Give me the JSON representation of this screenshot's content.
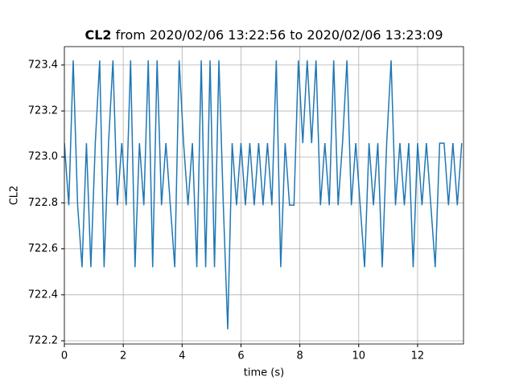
{
  "chart_data": {
    "type": "line",
    "title": [
      "CL2",
      "from 2020/02/06 13:22:56 to 2020/02/06 13:23:09"
    ],
    "xlabel": "time (s)",
    "ylabel": "CL2",
    "x": [
      0,
      0.15,
      0.3,
      0.45,
      0.6,
      0.75,
      0.9,
      1.05,
      1.2,
      1.35,
      1.5,
      1.65,
      1.8,
      1.95,
      2.1,
      2.25,
      2.4,
      2.55,
      2.7,
      2.85,
      3.0,
      3.15,
      3.3,
      3.45,
      3.6,
      3.75,
      3.9,
      4.05,
      4.2,
      4.35,
      4.5,
      4.65,
      4.8,
      4.95,
      5.1,
      5.25,
      5.4,
      5.55,
      5.7,
      5.85,
      6.0,
      6.15,
      6.3,
      6.45,
      6.6,
      6.75,
      6.9,
      7.05,
      7.2,
      7.35,
      7.5,
      7.65,
      7.8,
      7.95,
      8.1,
      8.25,
      8.4,
      8.55,
      8.7,
      8.85,
      9.0,
      9.15,
      9.3,
      9.45,
      9.6,
      9.75,
      9.9,
      10.05,
      10.2,
      10.35,
      10.5,
      10.65,
      10.8,
      10.95,
      11.1,
      11.25,
      11.4,
      11.55,
      11.7,
      11.85,
      12.0,
      12.15,
      12.3,
      12.45,
      12.6,
      12.75,
      12.9,
      13.05,
      13.2,
      13.35,
      13.5
    ],
    "series": [
      {
        "name": "CL2",
        "color": "#1f77b4",
        "values": [
          723.06,
          722.79,
          723.42,
          722.79,
          722.52,
          723.06,
          722.52,
          723.06,
          723.42,
          722.52,
          723.06,
          723.42,
          722.79,
          723.06,
          722.79,
          723.42,
          722.52,
          723.06,
          722.79,
          723.42,
          722.52,
          723.42,
          722.79,
          723.06,
          722.79,
          722.52,
          723.42,
          723.06,
          722.79,
          723.06,
          722.52,
          723.42,
          722.52,
          723.42,
          722.52,
          723.42,
          722.79,
          722.25,
          723.06,
          722.79,
          723.06,
          722.79,
          723.06,
          722.79,
          723.06,
          722.79,
          723.06,
          722.79,
          723.42,
          722.52,
          723.06,
          722.79,
          722.79,
          723.42,
          723.06,
          723.42,
          723.06,
          723.42,
          722.79,
          723.06,
          722.79,
          723.42,
          722.79,
          723.06,
          723.42,
          722.79,
          723.06,
          722.79,
          722.52,
          723.06,
          722.79,
          723.06,
          722.52,
          723.06,
          723.42,
          722.79,
          723.06,
          722.79,
          723.06,
          722.52,
          723.06,
          722.79,
          723.06,
          722.79,
          722.52,
          723.06,
          723.06,
          722.79,
          723.06,
          722.79,
          723.06
        ]
      }
    ],
    "xlim": [
      0,
      13.56
    ],
    "ylim": [
      722.186,
      723.48
    ],
    "xticks": [
      0,
      2,
      4,
      6,
      8,
      10,
      12
    ],
    "yticks": [
      722.2,
      722.4,
      722.6,
      722.8,
      {
        "value": 723,
        "label": "723.0"
      },
      723.2,
      723.4
    ],
    "grid": true
  }
}
